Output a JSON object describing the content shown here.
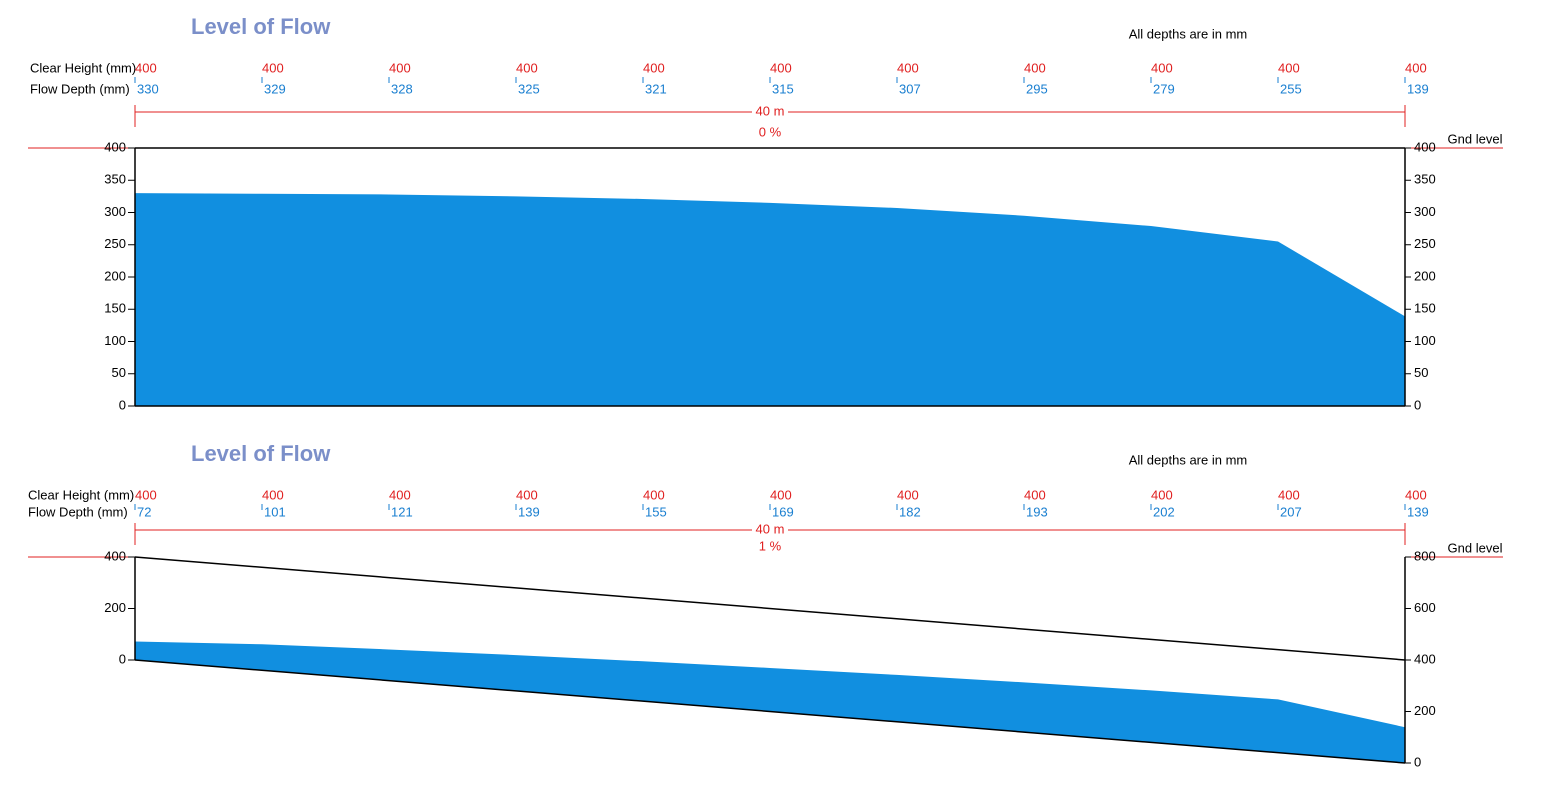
{
  "chart_data": [
    {
      "type": "area",
      "title": "Level of Flow",
      "note": "All depths are in mm",
      "row_labels": [
        "Clear Height (mm)",
        "Flow Depth (mm)"
      ],
      "clear_height": [
        400,
        400,
        400,
        400,
        400,
        400,
        400,
        400,
        400,
        400,
        400
      ],
      "flow_depth": [
        330,
        329,
        328,
        325,
        321,
        315,
        307,
        295,
        279,
        255,
        139
      ],
      "length": {
        "value": 40,
        "label": "40 m"
      },
      "slope": {
        "value": 0,
        "label": "0 %"
      },
      "ground_label": "Gnd level",
      "color": "#118fe0",
      "ylim": [
        0,
        400
      ],
      "yticks": [
        0,
        50,
        100,
        150,
        200,
        250,
        300,
        350,
        400
      ],
      "y2lim": [
        0,
        400
      ],
      "y2ticks": [
        0,
        50,
        100,
        150,
        200,
        250,
        300,
        350,
        400
      ]
    },
    {
      "type": "area",
      "title": "Level of Flow",
      "note": "All depths are in mm",
      "row_labels": [
        "Clear Height (mm)",
        "Flow Depth (mm)"
      ],
      "clear_height": [
        400,
        400,
        400,
        400,
        400,
        400,
        400,
        400,
        400,
        400,
        400
      ],
      "flow_depth": [
        72,
        101,
        121,
        139,
        155,
        169,
        182,
        193,
        202,
        207,
        139
      ],
      "length": {
        "value": 40,
        "label": "40 m"
      },
      "slope": {
        "value": 1,
        "label": "1 %"
      },
      "ground_label": "Gnd level",
      "color": "#118fe0",
      "ylim": [
        -400,
        400
      ],
      "yticks": [
        0,
        200,
        400
      ],
      "y2lim": [
        0,
        800
      ],
      "y2ticks": [
        0,
        200,
        400,
        600,
        800
      ]
    }
  ]
}
